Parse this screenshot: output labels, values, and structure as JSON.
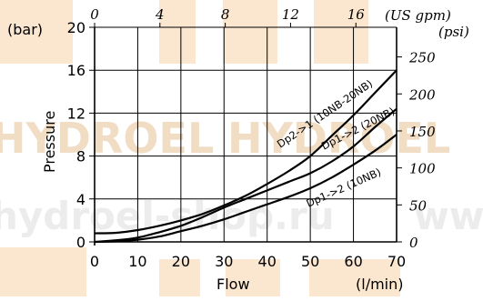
{
  "chart_data": {
    "type": "line",
    "xlabel": "Flow",
    "xunit": "(l/min)",
    "ylabel": "Pressure",
    "yunit": "(bar)",
    "xlim": [
      0,
      70
    ],
    "ylim": [
      0,
      20
    ],
    "x_ticks": [
      0,
      10,
      20,
      30,
      40,
      50,
      60,
      70
    ],
    "y_ticks": [
      0,
      4,
      8,
      12,
      16,
      20
    ],
    "top_axis": {
      "unit": "(US gpm)",
      "ticks": [
        "0",
        "4",
        "8",
        "12",
        "16"
      ],
      "tick_values_lpm": [
        0,
        15.14,
        30.28,
        45.42,
        60.57
      ]
    },
    "right_axis": {
      "unit": "(psi)",
      "ticks": [
        "0",
        "50",
        "100",
        "150",
        "200",
        "250"
      ],
      "tick_values_bar": [
        0,
        3.447,
        6.895,
        10.342,
        13.79,
        17.237
      ]
    },
    "grid": true,
    "series": [
      {
        "name": "Dp2->1 (10NB-20NB)",
        "x": [
          0,
          5,
          10,
          15,
          20,
          25,
          30,
          35,
          40,
          45,
          50,
          55,
          60,
          65,
          70
        ],
        "y": [
          0.8,
          0.85,
          1.1,
          1.5,
          2.0,
          2.6,
          3.4,
          4.3,
          5.4,
          6.6,
          8.0,
          9.9,
          11.8,
          13.9,
          16.0
        ]
      },
      {
        "name": "Dp1->2 (20NB)",
        "x": [
          0,
          5,
          10,
          15,
          20,
          25,
          30,
          35,
          40,
          45,
          50,
          55,
          60,
          65,
          70
        ],
        "y": [
          0,
          0.15,
          0.4,
          0.9,
          1.5,
          2.3,
          3.2,
          4.0,
          4.8,
          5.6,
          6.4,
          7.5,
          8.9,
          10.7,
          12.4
        ]
      },
      {
        "name": "Dp1->2 (10NB)",
        "x": [
          0,
          5,
          10,
          15,
          20,
          25,
          30,
          35,
          40,
          45,
          50,
          55,
          60,
          65,
          70
        ],
        "y": [
          0,
          0.05,
          0.2,
          0.5,
          1.0,
          1.5,
          2.1,
          2.8,
          3.5,
          4.2,
          5.0,
          6.0,
          7.2,
          8.5,
          10.0
        ]
      }
    ],
    "watermarks": [
      "HYDROEL",
      "HYDROEL",
      "hydroel-shop.ru",
      "www"
    ],
    "colors": {
      "line": "#000000",
      "grid": "#000000",
      "watermark": "#f6d9b8",
      "watermark_text": "#e8e8e8"
    }
  }
}
